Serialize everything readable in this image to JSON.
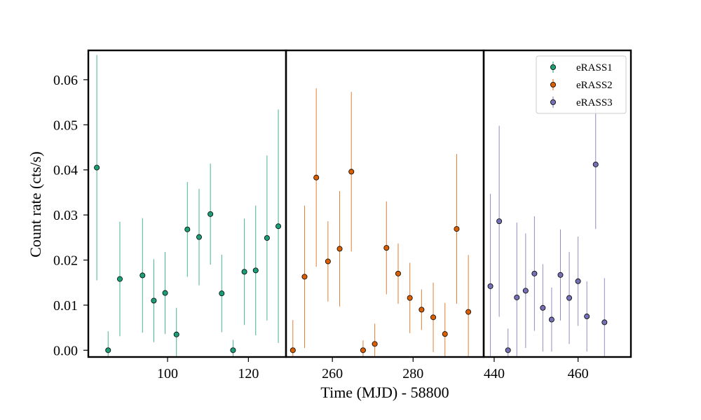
{
  "chart_data": {
    "type": "scatter",
    "xlabel": "Time (MJD) - 58800",
    "ylabel": "Count rate (cts/s)",
    "ylim": [
      -0.0015,
      0.0665
    ],
    "yticks": [
      0.0,
      0.01,
      0.02,
      0.03,
      0.04,
      0.05,
      0.06
    ],
    "ytick_labels": [
      "0.00",
      "0.01",
      "0.02",
      "0.03",
      "0.04",
      "0.05",
      "0.06"
    ],
    "grid": false,
    "legend_position": "top-right",
    "error_bars": true,
    "panels": [
      {
        "xlim": [
          80.4,
          129.3
        ],
        "xticks": [
          100,
          120
        ],
        "xtick_labels": [
          "100",
          "120"
        ],
        "series_index": 0
      },
      {
        "xlim": [
          248.5,
          297.5
        ],
        "xticks": [
          260,
          280
        ],
        "xtick_labels": [
          "260",
          "280"
        ],
        "series_index": 1
      },
      {
        "xlim": [
          437.5,
          472.6
        ],
        "xticks": [
          440,
          460
        ],
        "xtick_labels": [
          "440",
          "460"
        ],
        "series_index": 2
      }
    ],
    "series": [
      {
        "name": "eRASS1",
        "color": "#1b9e77",
        "points": [
          {
            "x": 82.5,
            "y": 0.0405,
            "err": 0.025
          },
          {
            "x": 85.3,
            "y": 0.0,
            "err": 0.0042
          },
          {
            "x": 88.2,
            "y": 0.0158,
            "err": 0.0127
          },
          {
            "x": 93.8,
            "y": 0.0166,
            "err": 0.0127
          },
          {
            "x": 96.6,
            "y": 0.011,
            "err": 0.0092
          },
          {
            "x": 99.4,
            "y": 0.0127,
            "err": 0.0091
          },
          {
            "x": 102.2,
            "y": 0.0035,
            "err": 0.0059
          },
          {
            "x": 104.9,
            "y": 0.0268,
            "err": 0.0105
          },
          {
            "x": 107.8,
            "y": 0.0251,
            "err": 0.0107
          },
          {
            "x": 110.6,
            "y": 0.0302,
            "err": 0.0112
          },
          {
            "x": 113.4,
            "y": 0.0126,
            "err": 0.0086
          },
          {
            "x": 116.2,
            "y": 0.0,
            "err": 0.0023
          },
          {
            "x": 119.0,
            "y": 0.0174,
            "err": 0.0118
          },
          {
            "x": 121.8,
            "y": 0.0177,
            "err": 0.0144
          },
          {
            "x": 124.6,
            "y": 0.0249,
            "err": 0.0183
          },
          {
            "x": 127.4,
            "y": 0.0275,
            "err": 0.0259
          }
        ]
      },
      {
        "name": "eRASS2",
        "color": "#d95f02",
        "points": [
          {
            "x": 250.2,
            "y": 0.0,
            "err": 0.0067
          },
          {
            "x": 253.1,
            "y": 0.0163,
            "err": 0.0158
          },
          {
            "x": 256.0,
            "y": 0.0383,
            "err": 0.0198
          },
          {
            "x": 258.9,
            "y": 0.0197,
            "err": 0.0089
          },
          {
            "x": 261.8,
            "y": 0.0225,
            "err": 0.0128
          },
          {
            "x": 264.7,
            "y": 0.0396,
            "err": 0.0177
          },
          {
            "x": 267.6,
            "y": 0.0,
            "err": 0.0022
          },
          {
            "x": 270.5,
            "y": 0.0014,
            "err": 0.0045
          },
          {
            "x": 273.4,
            "y": 0.0227,
            "err": 0.0103
          },
          {
            "x": 276.3,
            "y": 0.017,
            "err": 0.0067
          },
          {
            "x": 279.2,
            "y": 0.0116,
            "err": 0.0078
          },
          {
            "x": 282.1,
            "y": 0.009,
            "err": 0.0045
          },
          {
            "x": 285.0,
            "y": 0.0073,
            "err": 0.0077
          },
          {
            "x": 287.9,
            "y": 0.0036,
            "err": 0.0069
          },
          {
            "x": 290.8,
            "y": 0.0269,
            "err": 0.0166
          },
          {
            "x": 293.7,
            "y": 0.0085,
            "err": 0.0126
          }
        ]
      },
      {
        "name": "eRASS3",
        "color": "#7570b3",
        "points": [
          {
            "x": 439.1,
            "y": 0.0142,
            "err": 0.0205
          },
          {
            "x": 441.2,
            "y": 0.0286,
            "err": 0.0212
          },
          {
            "x": 443.3,
            "y": 0.0,
            "err": 0.0048
          },
          {
            "x": 445.4,
            "y": 0.0117,
            "err": 0.0166
          },
          {
            "x": 447.5,
            "y": 0.0132,
            "err": 0.0127
          },
          {
            "x": 449.6,
            "y": 0.017,
            "err": 0.0127
          },
          {
            "x": 451.6,
            "y": 0.0094,
            "err": 0.0097
          },
          {
            "x": 453.7,
            "y": 0.0068,
            "err": 0.0071
          },
          {
            "x": 455.8,
            "y": 0.0167,
            "err": 0.0101
          },
          {
            "x": 457.9,
            "y": 0.0116,
            "err": 0.0102
          },
          {
            "x": 460.0,
            "y": 0.0153,
            "err": 0.0099
          },
          {
            "x": 462.1,
            "y": 0.0075,
            "err": 0.0078
          },
          {
            "x": 464.2,
            "y": 0.0412,
            "err": 0.0143
          },
          {
            "x": 466.3,
            "y": 0.0062,
            "err": 0.0098
          }
        ]
      }
    ]
  }
}
